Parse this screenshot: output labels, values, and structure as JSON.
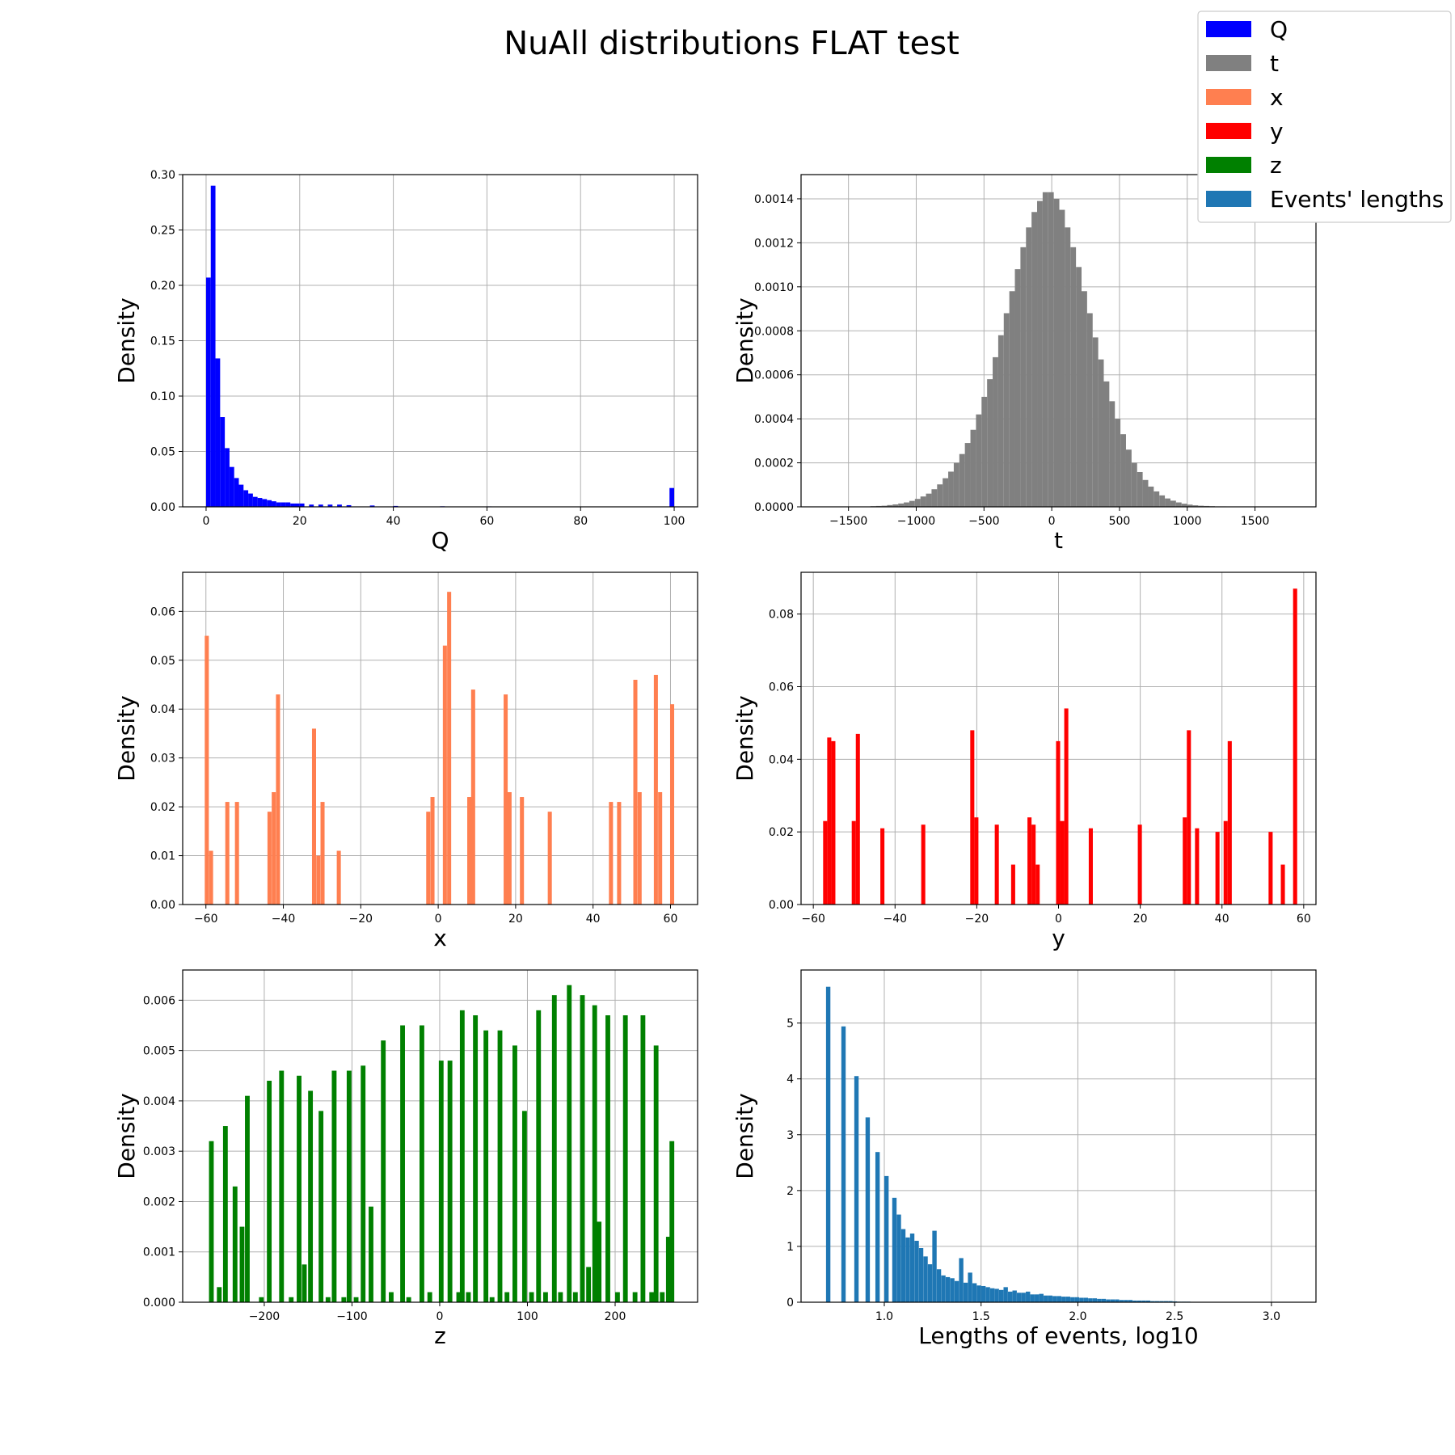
{
  "title": "NuAll distributions FLAT test",
  "legend": {
    "placement": "top-right",
    "items": [
      {
        "label": "Q",
        "color": "#0000ff"
      },
      {
        "label": "t",
        "color": "#808080"
      },
      {
        "label": "x",
        "color": "#ff7f50"
      },
      {
        "label": "y",
        "color": "#ff0000"
      },
      {
        "label": "z",
        "color": "#008000"
      },
      {
        "label": "Events' lengths",
        "color": "#1f77b4"
      }
    ]
  },
  "chart_data": [
    {
      "type": "bar",
      "name": "Q",
      "color": "#0000ff",
      "xlabel": "Q",
      "ylabel": "Density",
      "xlim": [
        -5,
        105
      ],
      "ylim": [
        0,
        0.3
      ],
      "xticks": [
        0,
        20,
        40,
        60,
        80,
        100
      ],
      "yticks": [
        0.0,
        0.05,
        0.1,
        0.15,
        0.2,
        0.25,
        0.3
      ],
      "ytick_labels": [
        "0.00",
        "0.05",
        "0.10",
        "0.15",
        "0.20",
        "0.25",
        "0.30"
      ],
      "grid": true,
      "bin_width": 1,
      "x": [
        0,
        1,
        2,
        3,
        4,
        5,
        6,
        7,
        8,
        9,
        10,
        11,
        12,
        13,
        14,
        15,
        16,
        17,
        18,
        19,
        20,
        22,
        24,
        26,
        28,
        30,
        35,
        40,
        50,
        60,
        70,
        80,
        90,
        99
      ],
      "values": [
        0.207,
        0.29,
        0.134,
        0.081,
        0.053,
        0.036,
        0.026,
        0.02,
        0.015,
        0.012,
        0.009,
        0.008,
        0.007,
        0.006,
        0.005,
        0.004,
        0.004,
        0.004,
        0.003,
        0.003,
        0.003,
        0.002,
        0.002,
        0.002,
        0.002,
        0.0015,
        0.0012,
        0.0008,
        0.0005,
        0.0004,
        0.0003,
        0.0003,
        0.0003,
        0.017
      ]
    },
    {
      "type": "bar",
      "name": "t",
      "color": "#808080",
      "xlabel": "t",
      "ylabel": "Density",
      "xlim": [
        -1850,
        1950
      ],
      "ylim": [
        0,
        0.00151
      ],
      "xticks": [
        -1500,
        -1000,
        -500,
        0,
        500,
        1000,
        1500
      ],
      "xtick_labels": [
        "−1500",
        "−1000",
        "−500",
        "0",
        "500",
        "1000",
        "1500"
      ],
      "yticks": [
        0.0,
        0.0002,
        0.0004,
        0.0006,
        0.0008,
        0.001,
        0.0012,
        0.0014
      ],
      "ytick_labels": [
        "0.0000",
        "0.0002",
        "0.0004",
        "0.0006",
        "0.0008",
        "0.0010",
        "0.0012",
        "0.0014"
      ],
      "grid": true,
      "bin_width": 41,
      "x": [
        -1338,
        -1297,
        -1256,
        -1215,
        -1174,
        -1133,
        -1092,
        -1051,
        -1010,
        -969,
        -928,
        -887,
        -846,
        -805,
        -764,
        -723,
        -682,
        -641,
        -600,
        -559,
        -518,
        -477,
        -436,
        -395,
        -354,
        -313,
        -272,
        -231,
        -190,
        -149,
        -108,
        -67,
        -26,
        15,
        56,
        97,
        138,
        179,
        220,
        261,
        302,
        343,
        384,
        425,
        466,
        507,
        548,
        589,
        630,
        671,
        712,
        753,
        794,
        835,
        876,
        917,
        958,
        999,
        1040,
        1081,
        1122,
        1163,
        1204,
        1245,
        1286,
        1327
      ],
      "values": [
        3e-06,
        4e-06,
        5e-06,
        8e-06,
        1.1e-05,
        1.5e-05,
        2e-05,
        2.7e-05,
        3.6e-05,
        4.7e-05,
        6e-05,
        8e-05,
        0.000102,
        0.00013,
        0.00016,
        0.0002,
        0.00024,
        0.00029,
        0.00035,
        0.00042,
        0.0005,
        0.00058,
        0.00068,
        0.00078,
        0.00088,
        0.00098,
        0.00108,
        0.00118,
        0.00127,
        0.00134,
        0.00139,
        0.00143,
        0.00143,
        0.0014,
        0.00135,
        0.00127,
        0.00118,
        0.00109,
        0.00098,
        0.00088,
        0.00077,
        0.00067,
        0.00057,
        0.00048,
        0.0004,
        0.00033,
        0.00026,
        0.0002,
        0.000158,
        0.000122,
        9.2e-05,
        7e-05,
        5.2e-05,
        3.8e-05,
        2.8e-05,
        2e-05,
        1.4e-05,
        1e-05,
        7e-06,
        5e-06,
        4e-06,
        3e-06,
        2e-06,
        2e-06,
        1e-06,
        1e-06
      ]
    },
    {
      "type": "bar",
      "name": "x",
      "color": "#ff7f50",
      "xlabel": "x",
      "ylabel": "Density",
      "xlim": [
        -66,
        67
      ],
      "ylim": [
        0,
        0.068
      ],
      "xticks": [
        -60,
        -40,
        -20,
        0,
        20,
        40,
        60
      ],
      "xtick_labels": [
        "−60",
        "−40",
        "−20",
        "0",
        "20",
        "40",
        "60"
      ],
      "yticks": [
        0.0,
        0.01,
        0.02,
        0.03,
        0.04,
        0.05,
        0.06
      ],
      "ytick_labels": [
        "0.00",
        "0.01",
        "0.02",
        "0.03",
        "0.04",
        "0.05",
        "0.06"
      ],
      "grid": true,
      "bin_width": 1.05,
      "x": [
        -60.3,
        -59.2,
        -55.0,
        -52.5,
        -44.1,
        -43.0,
        -41.9,
        -32.6,
        -31.5,
        -30.4,
        -26.2,
        -3.1,
        -2.0,
        1.2,
        2.3,
        7.5,
        8.5,
        16.9,
        17.9,
        21.1,
        28.3,
        44.1,
        46.2,
        50.4,
        51.5,
        55.7,
        56.8,
        59.9
      ],
      "values": [
        0.055,
        0.011,
        0.021,
        0.021,
        0.019,
        0.023,
        0.043,
        0.036,
        0.01,
        0.021,
        0.011,
        0.019,
        0.022,
        0.053,
        0.064,
        0.022,
        0.044,
        0.043,
        0.023,
        0.022,
        0.019,
        0.021,
        0.021,
        0.046,
        0.023,
        0.047,
        0.023,
        0.041
      ]
    },
    {
      "type": "bar",
      "name": "y",
      "color": "#ff0000",
      "xlabel": "y",
      "ylabel": "Density",
      "xlim": [
        -63,
        63
      ],
      "ylim": [
        0,
        0.0915
      ],
      "xticks": [
        -60,
        -40,
        -20,
        0,
        20,
        40,
        60
      ],
      "xtick_labels": [
        "−60",
        "−40",
        "−20",
        "0",
        "20",
        "40",
        "60"
      ],
      "yticks": [
        0.0,
        0.02,
        0.04,
        0.06,
        0.08
      ],
      "ytick_labels": [
        "0.00",
        "0.02",
        "0.04",
        "0.06",
        "0.08"
      ],
      "grid": true,
      "bin_width": 1.0,
      "x": [
        -57.6,
        -56.6,
        -55.6,
        -50.6,
        -49.6,
        -43.6,
        -33.6,
        -21.6,
        -20.6,
        -15.6,
        -11.6,
        -7.6,
        -6.6,
        -5.6,
        -0.6,
        0.4,
        1.4,
        7.4,
        19.4,
        30.4,
        31.4,
        33.4,
        38.4,
        40.4,
        41.4,
        51.4,
        54.4,
        57.4
      ],
      "values": [
        0.023,
        0.046,
        0.045,
        0.023,
        0.047,
        0.021,
        0.022,
        0.048,
        0.024,
        0.022,
        0.011,
        0.024,
        0.022,
        0.011,
        0.045,
        0.023,
        0.054,
        0.021,
        0.022,
        0.024,
        0.048,
        0.021,
        0.02,
        0.023,
        0.045,
        0.02,
        0.011,
        0.087
      ]
    },
    {
      "type": "bar",
      "name": "z",
      "color": "#008000",
      "xlabel": "z",
      "ylabel": "Density",
      "xlim": [
        -293,
        294
      ],
      "ylim": [
        0,
        0.0066
      ],
      "xticks": [
        -200,
        -100,
        0,
        100,
        200
      ],
      "xtick_labels": [
        "−200",
        "−100",
        "0",
        "100",
        "200"
      ],
      "yticks": [
        0.0,
        0.001,
        0.002,
        0.003,
        0.004,
        0.005,
        0.006
      ],
      "ytick_labels": [
        "0.000",
        "0.001",
        "0.002",
        "0.003",
        "0.004",
        "0.005",
        "0.006"
      ],
      "grid": true,
      "bin_width": 5.4,
      "x": [
        -263,
        -254,
        -247,
        -236,
        -228,
        -222,
        -206,
        -197,
        -183,
        -172,
        -163,
        -157,
        -150,
        -138,
        -130,
        -123,
        -112,
        -106,
        -98,
        -90,
        -81,
        -67,
        -58,
        -45,
        -38,
        -23,
        -14,
        -1,
        9,
        19,
        23,
        30,
        38,
        50,
        57,
        66,
        74,
        83,
        94,
        102,
        110,
        118,
        128,
        135,
        145,
        152,
        160,
        167,
        174,
        179,
        189,
        200,
        209,
        220,
        229,
        239,
        244,
        251,
        258,
        262
      ],
      "values": [
        0.0032,
        0.0003,
        0.0035,
        0.0023,
        0.0015,
        0.0041,
        0.0001,
        0.0044,
        0.0046,
        0.0001,
        0.0045,
        0.00075,
        0.0042,
        0.0038,
        0.0001,
        0.0046,
        0.0001,
        0.0046,
        0.0001,
        0.0047,
        0.0019,
        0.0052,
        0.0002,
        0.0055,
        0.0001,
        0.0055,
        0.0002,
        0.0048,
        0.0048,
        0.0002,
        0.0058,
        0.0002,
        0.0057,
        0.0054,
        0.0001,
        0.0054,
        0.0002,
        0.0051,
        0.0038,
        0.0002,
        0.0058,
        0.0002,
        0.0061,
        0.0002,
        0.0063,
        0.0002,
        0.0061,
        0.0007,
        0.0059,
        0.0016,
        0.0057,
        0.0002,
        0.0057,
        0.0002,
        0.0057,
        0.0002,
        0.0051,
        0.0002,
        0.0013,
        0.0032
      ]
    },
    {
      "type": "bar",
      "name": "Events' lengths",
      "color": "#1f77b4",
      "xlabel": "Lengths of events, log10",
      "ylabel": "Density",
      "xlim": [
        0.57,
        3.23
      ],
      "ylim": [
        0,
        5.95
      ],
      "xticks": [
        1.0,
        1.5,
        2.0,
        2.5,
        3.0
      ],
      "xtick_labels": [
        "1.0",
        "1.5",
        "2.0",
        "2.5",
        "3.0"
      ],
      "yticks": [
        0,
        1,
        2,
        3,
        4,
        5
      ],
      "ytick_labels": [
        "0",
        "1",
        "2",
        "3",
        "4",
        "5"
      ],
      "grid": true,
      "bin_width": 0.0225,
      "x": [
        0.699,
        0.778,
        0.845,
        0.903,
        0.954,
        1.0,
        1.041,
        1.064,
        1.087,
        1.11,
        1.133,
        1.156,
        1.179,
        1.202,
        1.225,
        1.248,
        1.271,
        1.294,
        1.317,
        1.34,
        1.363,
        1.386,
        1.409,
        1.432,
        1.455,
        1.478,
        1.501,
        1.524,
        1.547,
        1.57,
        1.593,
        1.616,
        1.639,
        1.662,
        1.685,
        1.708,
        1.731,
        1.754,
        1.777,
        1.8,
        1.823,
        1.846,
        1.869,
        1.892,
        1.915,
        1.938,
        1.961,
        1.984,
        2.007,
        2.03,
        2.053,
        2.076,
        2.099,
        2.122,
        2.145,
        2.168,
        2.191,
        2.214,
        2.237,
        2.26,
        2.283,
        2.306,
        2.329,
        2.352,
        2.375,
        2.398,
        2.421,
        2.444,
        2.467,
        2.49,
        2.513,
        2.536,
        2.559
      ],
      "values": [
        5.65,
        4.94,
        4.05,
        3.31,
        2.69,
        2.26,
        1.87,
        1.57,
        1.31,
        1.16,
        1.23,
        1.1,
        0.97,
        0.82,
        0.68,
        1.28,
        0.59,
        0.48,
        0.45,
        0.43,
        0.38,
        0.79,
        0.35,
        0.53,
        0.34,
        0.3,
        0.29,
        0.27,
        0.25,
        0.24,
        0.22,
        0.27,
        0.19,
        0.21,
        0.17,
        0.17,
        0.19,
        0.14,
        0.14,
        0.15,
        0.12,
        0.12,
        0.11,
        0.11,
        0.1,
        0.1,
        0.09,
        0.09,
        0.08,
        0.08,
        0.07,
        0.07,
        0.06,
        0.06,
        0.05,
        0.05,
        0.05,
        0.04,
        0.04,
        0.04,
        0.03,
        0.03,
        0.03,
        0.03,
        0.02,
        0.02,
        0.02,
        0.02,
        0.02,
        0.015,
        0.01,
        0.01,
        0.01
      ]
    }
  ]
}
